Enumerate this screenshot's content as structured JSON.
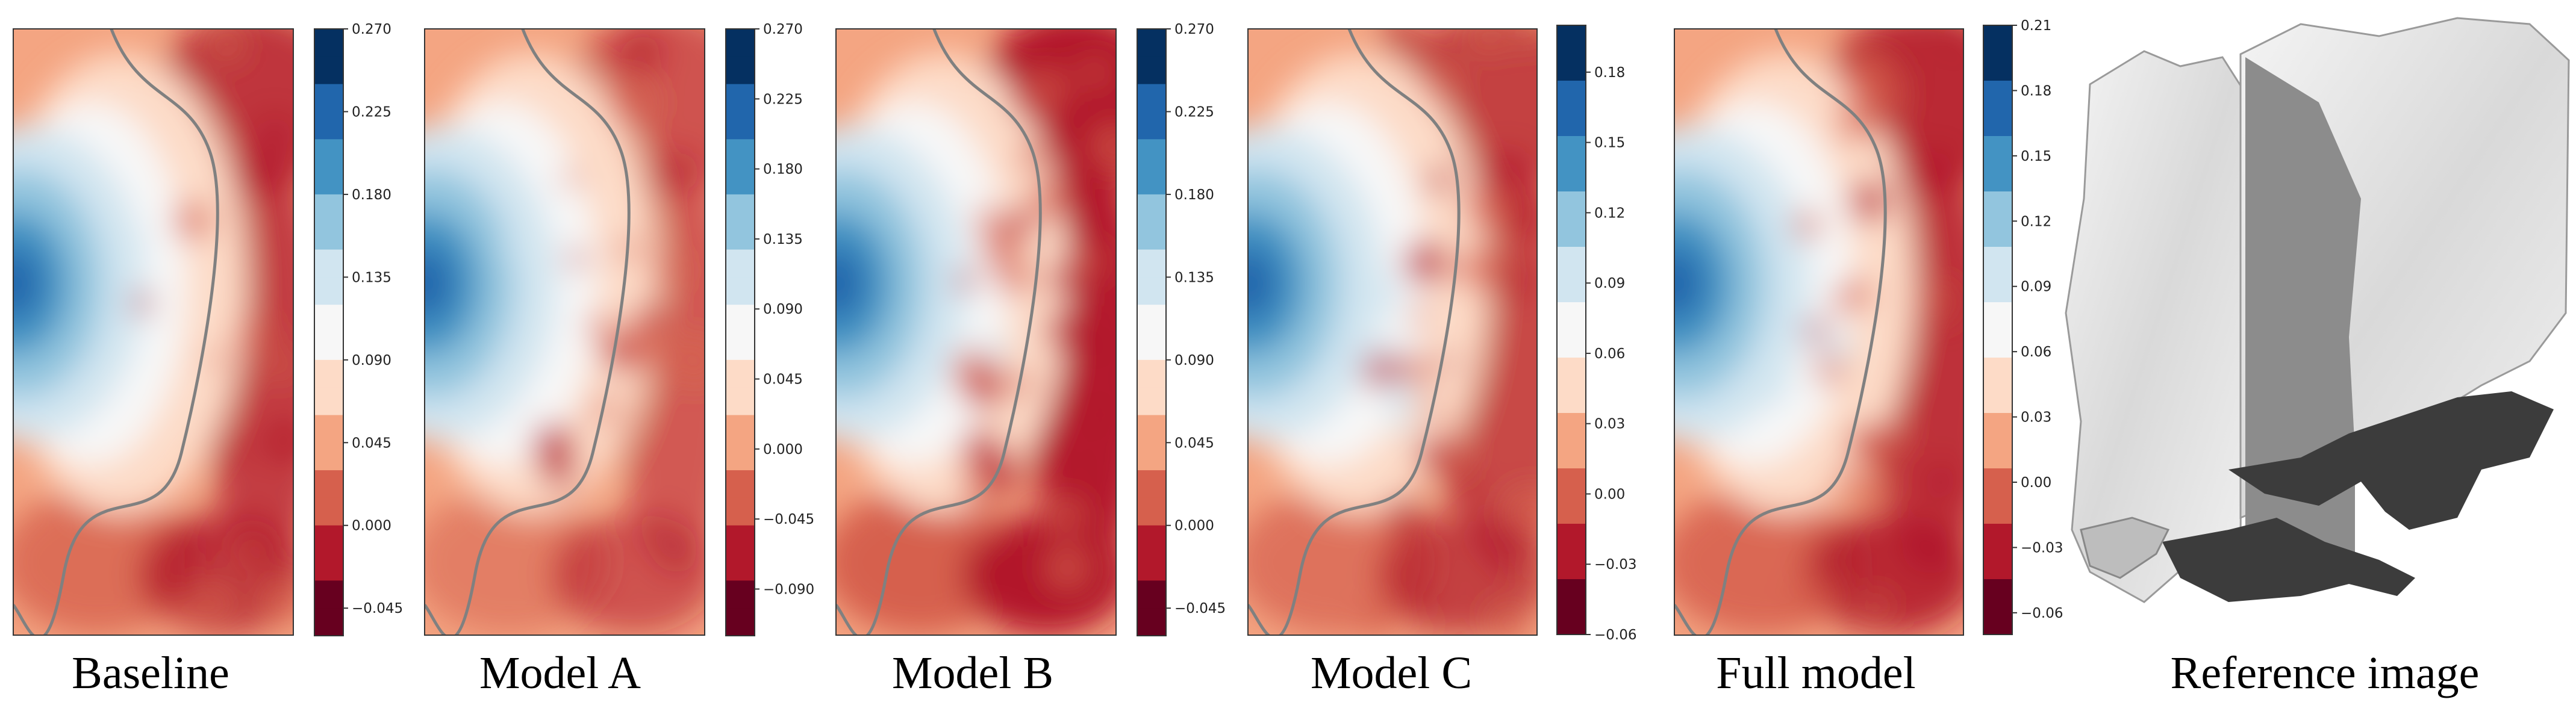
{
  "figure": {
    "panels": [
      {
        "id": "baseline",
        "title": "Baseline"
      },
      {
        "id": "model-a",
        "title": "Model A"
      },
      {
        "id": "model-b",
        "title": "Model B"
      },
      {
        "id": "model-c",
        "title": "Model C"
      },
      {
        "id": "full-model",
        "title": "Full model"
      }
    ],
    "reference_title": "Reference image"
  },
  "colors": {
    "scale": [
      "#67001f",
      "#b2182b",
      "#d6604d",
      "#f4a582",
      "#fddbc7",
      "#f7f7f7",
      "#d1e5f0",
      "#92c5de",
      "#4393c3",
      "#2166ac",
      "#053061"
    ],
    "contour_line": "#808080",
    "reference_surface": "#e4e4e4",
    "reference_plane": "#8c8c8c",
    "reference_shadow": "#3c3c3c"
  },
  "chart_data": [
    {
      "type": "heatmap",
      "panel": "Baseline",
      "title": "Baseline",
      "colorbar": {
        "min": -0.06,
        "max": 0.27,
        "ticks": [
          "0.270",
          "0.225",
          "0.180",
          "0.135",
          "0.090",
          "0.045",
          "0.000",
          "−0.045"
        ]
      }
    },
    {
      "type": "heatmap",
      "panel": "Model A",
      "title": "Model A",
      "colorbar": {
        "min": -0.12,
        "max": 0.27,
        "ticks": [
          "0.270",
          "0.225",
          "0.180",
          "0.135",
          "0.090",
          "0.045",
          "0.000",
          "−0.045",
          "−0.090"
        ]
      }
    },
    {
      "type": "heatmap",
      "panel": "Model B",
      "title": "Model B",
      "colorbar": {
        "min": -0.06,
        "max": 0.27,
        "ticks": [
          "0.270",
          "0.225",
          "0.180",
          "0.135",
          "0.090",
          "0.045",
          "0.000",
          "−0.045"
        ]
      }
    },
    {
      "type": "heatmap",
      "panel": "Model C",
      "title": "Model C",
      "colorbar": {
        "min": -0.06,
        "max": 0.2,
        "ticks": [
          "0.18",
          "0.15",
          "0.12",
          "0.09",
          "0.06",
          "0.03",
          "0.00",
          "−0.03",
          "−0.06"
        ]
      }
    },
    {
      "type": "heatmap",
      "panel": "Full model",
      "title": "Full model",
      "colorbar": {
        "min": -0.07,
        "max": 0.21,
        "ticks": [
          "0.21",
          "0.18",
          "0.15",
          "0.12",
          "0.09",
          "0.06",
          "0.03",
          "0.00",
          "−0.03",
          "−0.06"
        ]
      }
    }
  ]
}
